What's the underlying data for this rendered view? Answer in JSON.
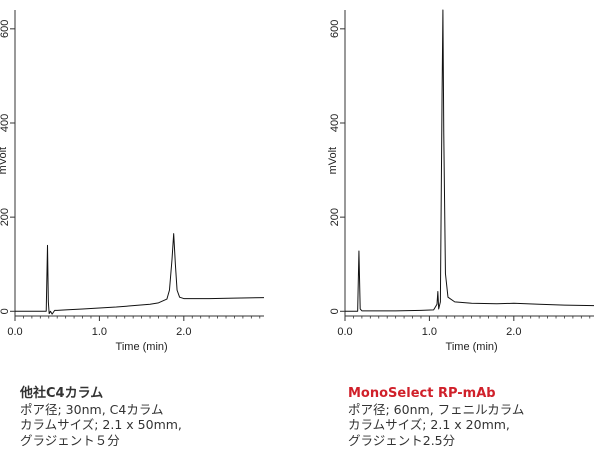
{
  "chart_data": [
    {
      "type": "line",
      "title": "",
      "xlabel": "Time (min)",
      "ylabel": "mVolt",
      "xlim": [
        0,
        2.95
      ],
      "ylim": [
        -10,
        640
      ],
      "xticks": [
        0.0,
        1.0,
        2.0
      ],
      "xtick_labels": [
        "0.0",
        "1.0",
        "2.0"
      ],
      "yticks": [
        0,
        200,
        400,
        600
      ],
      "ytick_labels": [
        "0",
        "200",
        "400",
        "600"
      ],
      "grid": false,
      "series": [
        {
          "x": [
            0.0,
            0.3,
            0.37,
            0.385,
            0.395,
            0.405,
            0.42,
            0.44,
            0.47,
            0.5,
            0.6,
            0.8,
            1.0,
            1.2,
            1.4,
            1.6,
            1.7,
            1.75,
            1.8,
            1.83,
            1.86,
            1.88,
            1.9,
            1.92,
            1.95,
            2.0,
            2.1,
            2.3,
            2.6,
            2.95
          ],
          "y": [
            0,
            0,
            0,
            140,
            20,
            -5,
            0,
            -6,
            2,
            2,
            3,
            5,
            7,
            9,
            12,
            15,
            18,
            22,
            26,
            45,
            110,
            165,
            100,
            45,
            30,
            27,
            27,
            27,
            28,
            29
          ]
        }
      ]
    },
    {
      "type": "line",
      "title": "",
      "xlabel": "Time (min)",
      "ylabel": "mVolt",
      "xlim": [
        0,
        2.95
      ],
      "ylim": [
        -10,
        640
      ],
      "xticks": [
        0.0,
        1.0,
        2.0
      ],
      "xtick_labels": [
        "0.0",
        "1.0",
        "2.0"
      ],
      "yticks": [
        0,
        200,
        400,
        600
      ],
      "ytick_labels": [
        "0",
        "200",
        "400",
        "600"
      ],
      "grid": false,
      "series": [
        {
          "x": [
            0.0,
            0.12,
            0.15,
            0.165,
            0.18,
            0.2,
            0.3,
            0.6,
            0.9,
            1.05,
            1.09,
            1.1,
            1.11,
            1.13,
            1.15,
            1.16,
            1.17,
            1.19,
            1.22,
            1.3,
            1.5,
            1.8,
            2.0,
            2.3,
            2.6,
            2.95
          ],
          "y": [
            0,
            0,
            0,
            128,
            5,
            1,
            1,
            1,
            2,
            3,
            15,
            42,
            5,
            20,
            460,
            640,
            380,
            80,
            30,
            20,
            17,
            16,
            17,
            15,
            13,
            12
          ]
        }
      ]
    }
  ],
  "captions": {
    "left": {
      "title": "他社C4カラム",
      "line1": "ポア径; 30nm, C4カラム",
      "line2": "カラムサイズ; 2.1 x 50mm,",
      "line3": "グラジェント５分"
    },
    "right": {
      "title": "MonoSelect RP-mAb",
      "line1": "ポア径; 60nm, フェニルカラム",
      "line2": "カラムサイズ; 2.1 x 20mm,",
      "line3": "グラジェント2.5分"
    }
  },
  "colors": {
    "trace": "#111111",
    "axis": "#333333",
    "brand_title": "#d0202a"
  }
}
